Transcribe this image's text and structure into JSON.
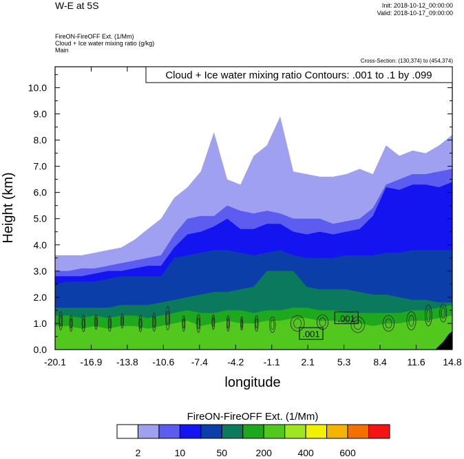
{
  "header": {
    "left_title": "W-E at 5S",
    "init": "Init: 2018-10-12_00:00:00",
    "valid": "Valid: 2018-10-17_09:00:00",
    "info_lines": [
      "FireON-FireOFF Ext.   (1/Mm)",
      "Cloud + Ice water mixing ratio   (g/kg)",
      "Main"
    ],
    "cross_section": "Cross-Section: (130,374) to (454,374)"
  },
  "chart_data": {
    "type": "heatmap",
    "title": "",
    "xlabel": "longitude",
    "ylabel": "Height (km)",
    "xlim": [
      -20.1,
      14.8
    ],
    "ylim": [
      0.0,
      10.8
    ],
    "x_ticks": [
      "-20.1",
      "-16.9",
      "-13.8",
      "-10.6",
      "-7.4",
      "-4.2",
      "-1.1",
      "2.1",
      "5.3",
      "8.4",
      "11.6",
      "14.8"
    ],
    "y_ticks": [
      "0.0",
      "1.0",
      "2.0",
      "3.0",
      "4.0",
      "5.0",
      "6.0",
      "7.0",
      "8.0",
      "9.0",
      "10.0"
    ],
    "contour_legend": "Cloud + Ice water mixing ratio Contours: .001 to .1 by .099",
    "contour_labels": [
      {
        "text": ".001",
        "x": 5.5,
        "y": 1.2
      },
      {
        "text": ".001",
        "x": 2.4,
        "y": 0.6
      }
    ],
    "colorbar": {
      "title": "FireON-FireOFF Ext.  (1/Mm)",
      "colors": [
        "#ffffff",
        "#a0a0f0",
        "#5c5cf0",
        "#1414f0",
        "#0c3eaa",
        "#0b7a5c",
        "#1ea81e",
        "#52c81e",
        "#a0e61e",
        "#f0f000",
        "#f5b400",
        "#f56e00",
        "#f51414"
      ],
      "tick_labels": [
        "2",
        "10",
        "50",
        "200",
        "400",
        "600"
      ],
      "tick_after_box": [
        1,
        3,
        5,
        7,
        9,
        11
      ]
    },
    "levels": [
      {
        "color": "#a0a0f0",
        "top": [
          3.6,
          3.6,
          3.6,
          3.7,
          3.8,
          3.9,
          4.2,
          4.6,
          5.0,
          5.8,
          6.2,
          6.8,
          8.3,
          6.5,
          6.3,
          7.4,
          7.8,
          8.9,
          6.8,
          6.7,
          6.6,
          6.6,
          6.7,
          6.9,
          6.7,
          7.8,
          7.4,
          7.6,
          7.5,
          7.8,
          8.2
        ]
      },
      {
        "color": "#5c5cf0",
        "top": [
          3.0,
          3.0,
          3.1,
          3.1,
          3.2,
          3.3,
          3.4,
          3.5,
          3.6,
          4.4,
          5.0,
          5.1,
          5.1,
          5.5,
          5.3,
          5.2,
          5.3,
          5.2,
          5.0,
          5.0,
          5.0,
          4.8,
          4.9,
          5.0,
          5.4,
          6.3,
          6.5,
          6.7,
          6.7,
          6.8,
          6.9
        ]
      },
      {
        "color": "#1414f0",
        "top": [
          2.8,
          2.8,
          2.8,
          2.9,
          3.0,
          3.0,
          3.1,
          3.2,
          3.2,
          3.9,
          4.4,
          4.5,
          4.7,
          5.0,
          4.6,
          4.6,
          4.8,
          4.8,
          4.5,
          4.4,
          4.5,
          4.4,
          4.5,
          4.6,
          5.1,
          6.2,
          6.1,
          6.3,
          6.3,
          6.2,
          6.4
        ]
      },
      {
        "color": "#0c3eaa",
        "top": [
          2.5,
          2.6,
          2.6,
          2.6,
          2.7,
          2.8,
          2.8,
          2.8,
          2.8,
          3.5,
          3.6,
          3.7,
          3.8,
          3.8,
          3.7,
          3.6,
          3.7,
          3.8,
          3.6,
          3.5,
          3.5,
          3.5,
          3.6,
          3.6,
          3.6,
          3.7,
          3.7,
          3.8,
          3.8,
          3.8,
          3.8
        ]
      },
      {
        "color": "#0b7a5c",
        "top": [
          1.6,
          1.6,
          1.6,
          1.6,
          1.6,
          1.7,
          1.7,
          1.7,
          1.8,
          1.9,
          2.0,
          2.1,
          2.2,
          2.2,
          2.3,
          2.4,
          3.0,
          3.0,
          3.0,
          2.4,
          2.3,
          2.3,
          2.3,
          2.2,
          2.1,
          2.1,
          2.0,
          1.9,
          1.9,
          1.8,
          1.8
        ]
      },
      {
        "color": "#1ea81e",
        "top": [
          1.3,
          1.3,
          1.2,
          1.3,
          1.2,
          1.3,
          1.3,
          1.2,
          1.3,
          1.4,
          1.5,
          1.4,
          1.4,
          1.5,
          1.5,
          1.4,
          1.5,
          1.5,
          1.6,
          1.6,
          1.5,
          1.5,
          1.4,
          1.4,
          1.4,
          1.4,
          1.4,
          1.5,
          1.5,
          1.6,
          1.7
        ]
      },
      {
        "color": "#52c81e",
        "top": [
          0.9,
          0.9,
          0.8,
          0.9,
          0.8,
          0.9,
          0.9,
          0.8,
          0.9,
          1.0,
          1.1,
          0.9,
          1.0,
          1.1,
          1.0,
          1.0,
          1.1,
          1.1,
          1.2,
          1.2,
          1.1,
          1.1,
          1.0,
          1.0,
          0.9,
          1.0,
          1.0,
          1.1,
          1.1,
          1.2,
          1.3
        ]
      }
    ],
    "terrain_color": "#000000",
    "terrain": {
      "x": [
        13.3,
        14.0,
        14.5,
        14.8
      ],
      "y": [
        0.0,
        0.3,
        0.6,
        0.7
      ]
    }
  }
}
